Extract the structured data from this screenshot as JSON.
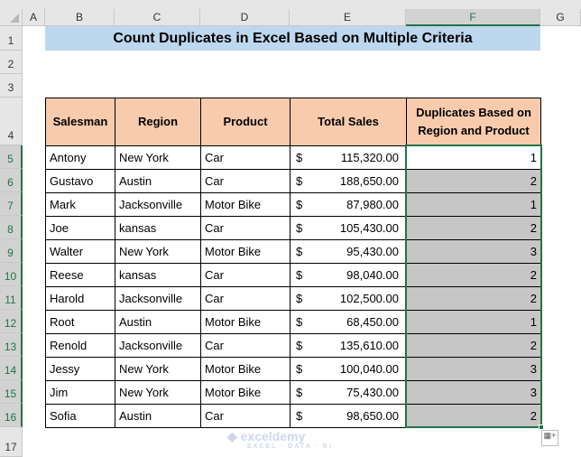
{
  "columns": [
    "A",
    "B",
    "C",
    "D",
    "E",
    "F",
    "G"
  ],
  "rows": [
    "1",
    "2",
    "3",
    "4",
    "5",
    "6",
    "7",
    "8",
    "9",
    "10",
    "11",
    "12",
    "13",
    "14",
    "15",
    "16",
    "17"
  ],
  "title": "Count Duplicates in Excel Based on Multiple Criteria",
  "headers": [
    "Salesman",
    "Region",
    "Product",
    "Total Sales",
    "Duplicates Based on Region and Product"
  ],
  "currency_symbol": "$",
  "records": [
    [
      "Antony",
      "New York",
      "Car",
      "115,320.00",
      "1"
    ],
    [
      "Gustavo",
      "Austin",
      "Car",
      "188,650.00",
      "2"
    ],
    [
      "Mark",
      "Jacksonville",
      "Motor Bike",
      "87,980.00",
      "1"
    ],
    [
      "Joe",
      "kansas",
      "Car",
      "105,430.00",
      "2"
    ],
    [
      "Walter",
      "New York",
      "Motor Bike",
      "95,430.00",
      "3"
    ],
    [
      "Reese",
      "kansas",
      "Car",
      "98,040.00",
      "2"
    ],
    [
      "Harold",
      "Jacksonville",
      "Car",
      "102,500.00",
      "2"
    ],
    [
      "Root",
      "Austin",
      "Motor Bike",
      "68,450.00",
      "1"
    ],
    [
      "Renold",
      "Jacksonville",
      "Car",
      "135,610.00",
      "2"
    ],
    [
      "Jessy",
      "New York",
      "Motor Bike",
      "100,040.00",
      "3"
    ],
    [
      "Jim",
      "New York",
      "Motor Bike",
      "75,430.00",
      "3"
    ],
    [
      "Sofia",
      "Austin",
      "Car",
      "98,650.00",
      "2"
    ]
  ],
  "watermark": {
    "name": "exceldemy",
    "tagline": "EXCEL · DATA · BI"
  }
}
